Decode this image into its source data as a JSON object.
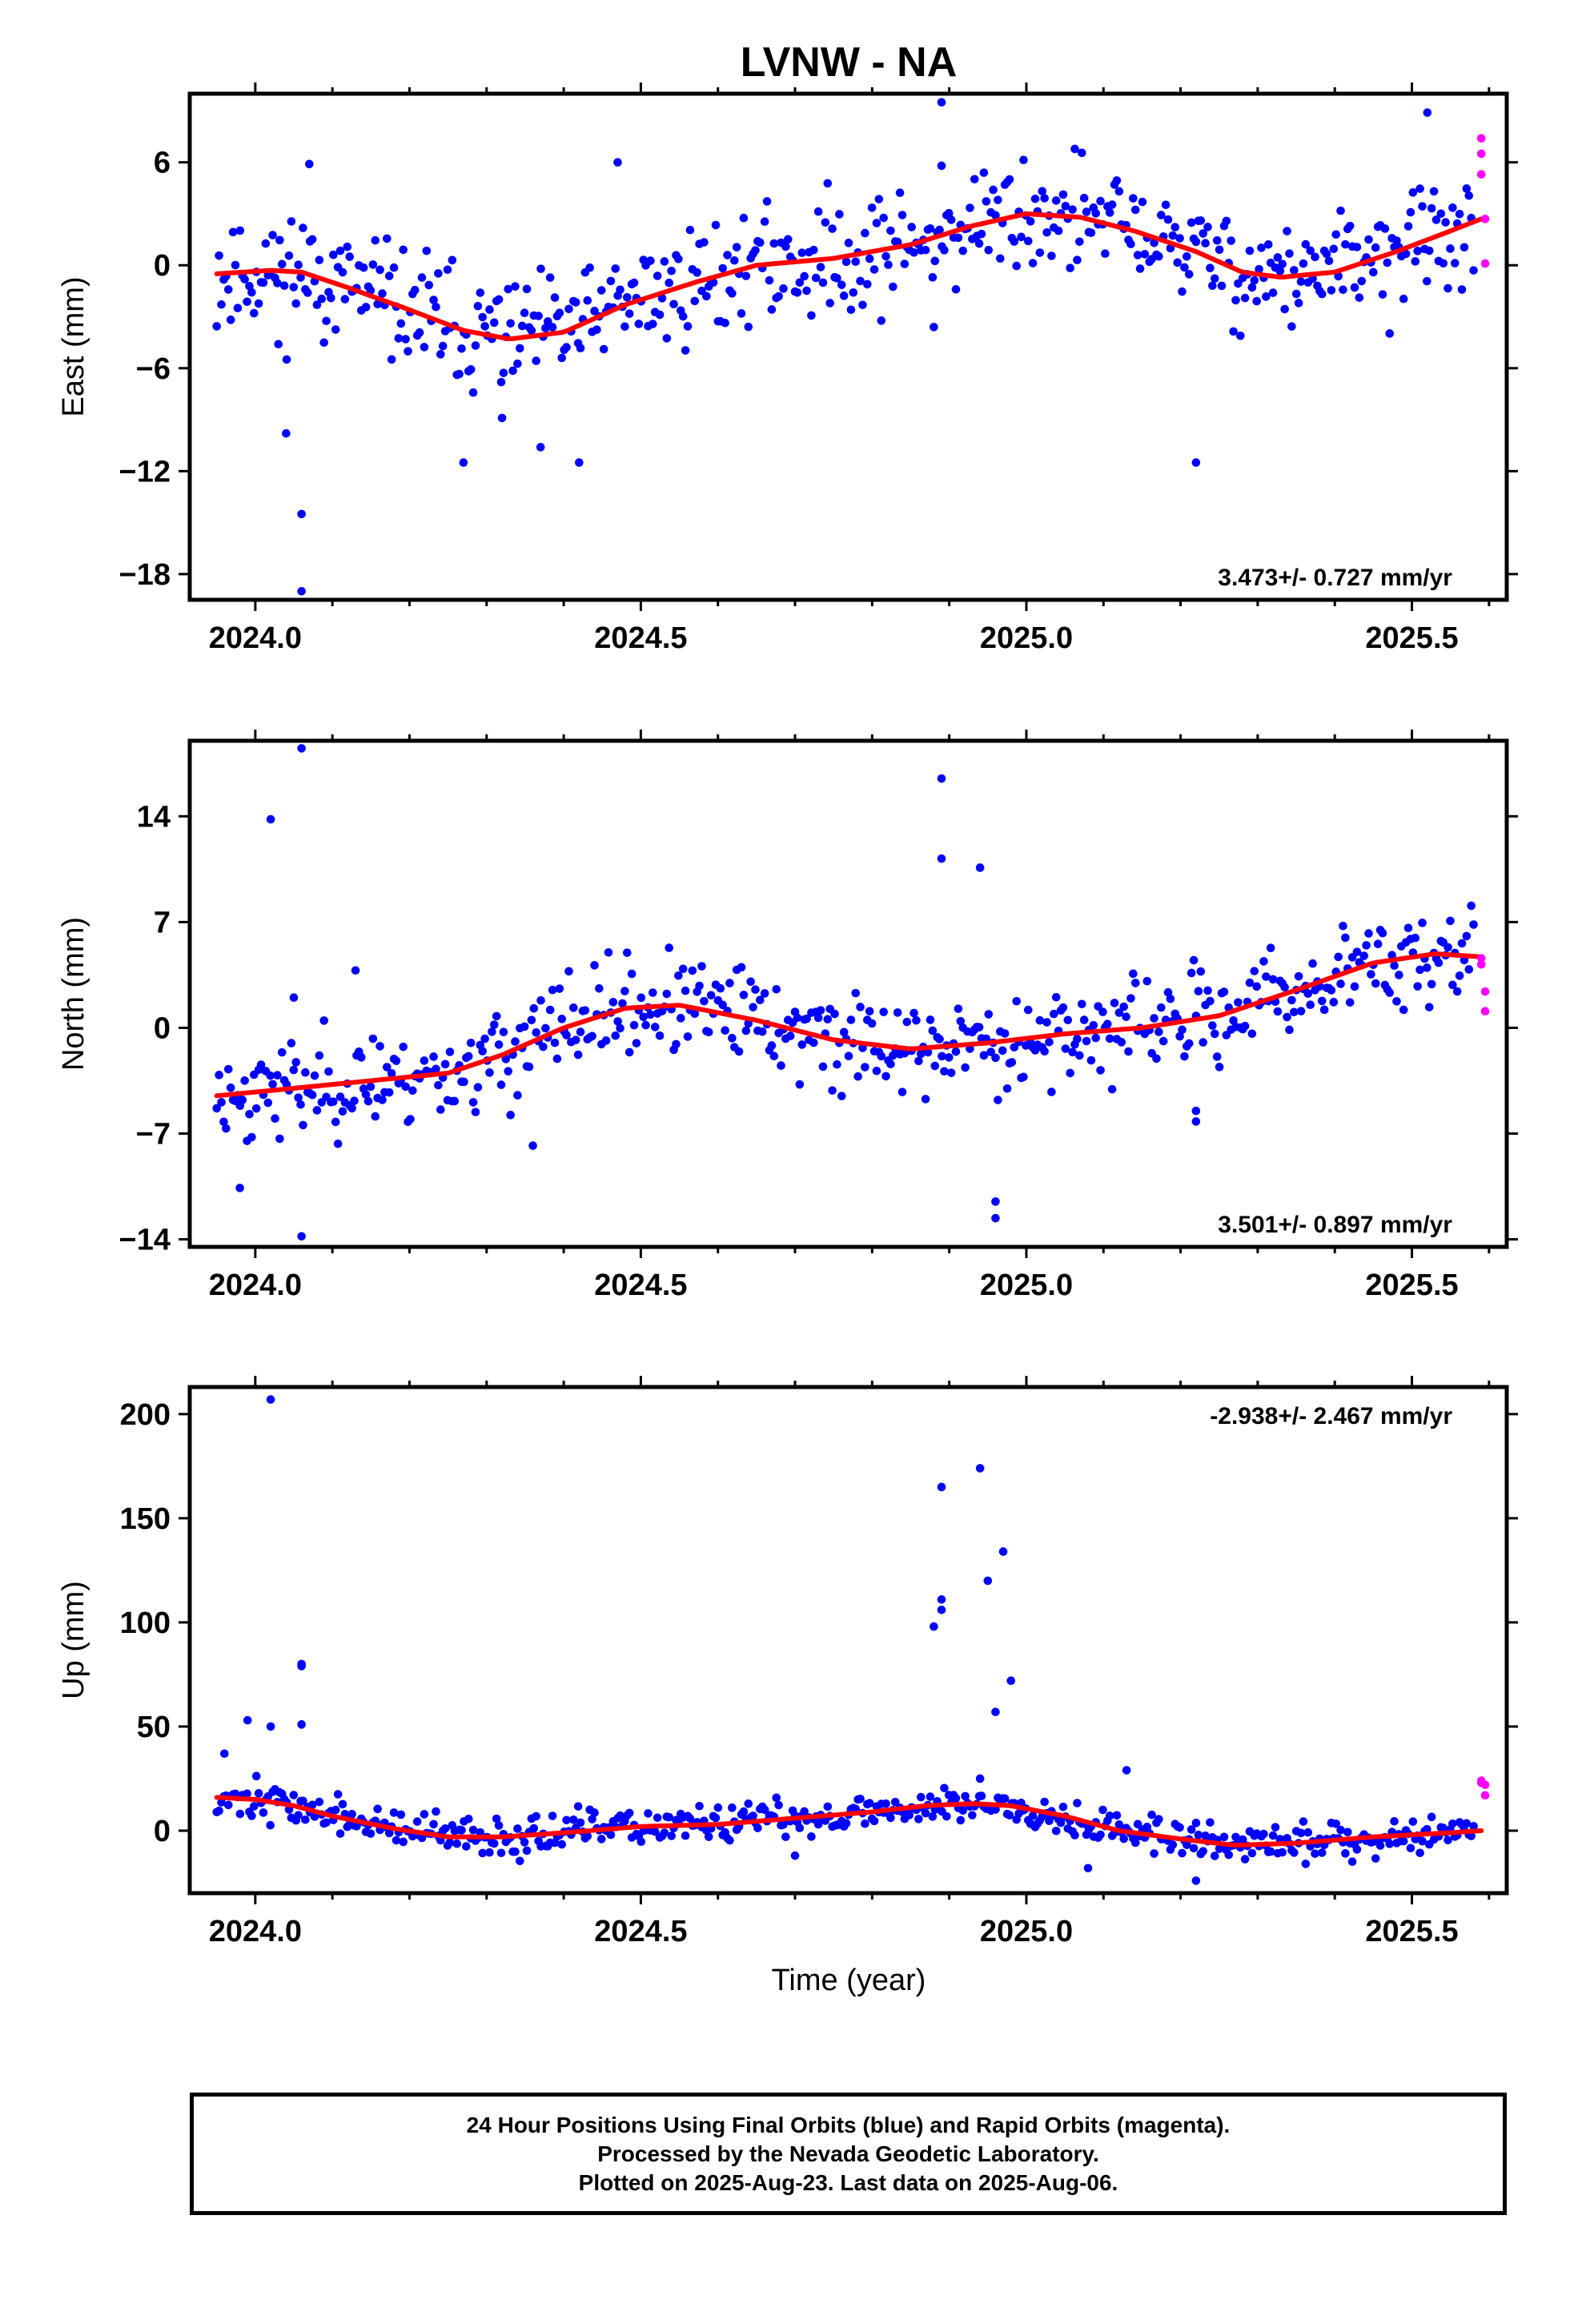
{
  "title": "LVNW - NA",
  "xlabel": "Time (year)",
  "colors": {
    "final": "#0000ff",
    "rapid": "#ff00ff",
    "model": "#ff0000",
    "frame": "#000000"
  },
  "footer": {
    "line1": "24 Hour Positions Using Final Orbits (blue) and Rapid Orbits (magenta).",
    "line2": "Processed by the Nevada Geodetic Laboratory.",
    "line3": "Plotted on 2025-Aug-23. Last data on 2025-Aug-06."
  },
  "chart_data": [
    {
      "type": "scatter",
      "ylabel": "East (mm)",
      "rate_label": "3.473+/- 0.727 mm/yr",
      "rate_position": "bottom-right",
      "xlim": [
        2023.915,
        2025.623
      ],
      "ylim": [
        -19.5,
        10
      ],
      "xticks": [
        2024.0,
        2024.5,
        2025.0,
        2025.5
      ],
      "xtick_labels": [
        "2024.0",
        "2024.5",
        "2025.0",
        "2025.5"
      ],
      "yticks": [
        6,
        0,
        -6,
        -12,
        -18
      ],
      "ytick_labels": [
        "6",
        "0",
        "−6",
        "−12",
        "−18"
      ],
      "model": {
        "x": [
          2023.95,
          2024.02,
          2024.06,
          2024.12,
          2024.2,
          2024.27,
          2024.33,
          2024.4,
          2024.48,
          2024.57,
          2024.65,
          2024.75,
          2024.85,
          2024.93,
          2025.0,
          2025.07,
          2025.14,
          2025.22,
          2025.28,
          2025.33,
          2025.4,
          2025.48,
          2025.55,
          2025.59
        ],
        "y": [
          -0.5,
          -0.3,
          -0.4,
          -1.3,
          -2.6,
          -3.8,
          -4.3,
          -3.9,
          -2.3,
          -1.0,
          0.0,
          0.4,
          1.2,
          2.3,
          3.0,
          2.8,
          2.0,
          0.8,
          -0.4,
          -0.7,
          -0.4,
          0.8,
          2.0,
          2.7
        ]
      },
      "final_outliers": {
        "x": [
          2024.04,
          2024.06,
          2024.06,
          2024.03,
          2024.27,
          2024.32,
          2024.37,
          2024.42,
          2024.47,
          2024.89,
          2024.89,
          2024.88,
          2025.22,
          2025.52,
          2024.07
        ],
        "y": [
          -9.8,
          -14.5,
          -19.0,
          -4.6,
          -11.5,
          -8.9,
          -10.6,
          -11.5,
          6.0,
          9.5,
          5.8,
          -3.6,
          -11.5,
          8.9,
          5.9
        ]
      },
      "rapid": {
        "x": [
          2025.59,
          2025.59,
          2025.59,
          2025.595,
          2025.595
        ],
        "y": [
          7.4,
          6.5,
          5.3,
          2.7,
          0.1
        ]
      },
      "final_series": {
        "x_start": 2023.95,
        "x_end": 2025.58,
        "n": 540,
        "scatter": 1.7,
        "seed": 11
      }
    },
    {
      "type": "scatter",
      "ylabel": "North (mm)",
      "rate_label": "3.501+/- 0.897 mm/yr",
      "rate_position": "bottom-right",
      "xlim": [
        2023.915,
        2025.623
      ],
      "ylim": [
        -14.5,
        19
      ],
      "xticks": [
        2024.0,
        2024.5,
        2025.0,
        2025.5
      ],
      "xtick_labels": [
        "2024.0",
        "2024.5",
        "2025.0",
        "2025.5"
      ],
      "yticks": [
        14,
        7,
        0,
        -7,
        -14
      ],
      "ytick_labels": [
        "14",
        "7",
        "0",
        "−7",
        "−14"
      ],
      "model": {
        "x": [
          2023.95,
          2024.05,
          2024.15,
          2024.25,
          2024.32,
          2024.4,
          2024.48,
          2024.55,
          2024.65,
          2024.75,
          2024.85,
          2024.95,
          2025.05,
          2025.15,
          2025.25,
          2025.35,
          2025.45,
          2025.53,
          2025.59
        ],
        "y": [
          -4.5,
          -4.0,
          -3.5,
          -3.0,
          -1.8,
          0.0,
          1.3,
          1.5,
          0.5,
          -0.8,
          -1.4,
          -1.0,
          -0.4,
          0.0,
          0.8,
          2.5,
          4.3,
          4.9,
          4.7
        ]
      },
      "final_outliers": {
        "x": [
          2024.06,
          2024.02,
          2024.06,
          2024.36,
          2023.98,
          2024.89,
          2024.89,
          2024.94,
          2024.96,
          2024.96,
          2025.22,
          2025.22,
          2024.13,
          2024.05
        ],
        "y": [
          18.5,
          13.8,
          -13.8,
          -7.8,
          -10.6,
          16.5,
          11.2,
          10.6,
          -11.5,
          -12.6,
          -5.5,
          -6.2,
          3.8,
          2.0
        ]
      },
      "rapid": {
        "x": [
          2025.59,
          2025.59,
          2025.595,
          2025.595
        ],
        "y": [
          4.6,
          4.2,
          2.4,
          1.1
        ]
      },
      "final_series": {
        "x_start": 2023.95,
        "x_end": 2025.58,
        "n": 540,
        "scatter": 1.6,
        "seed": 23
      }
    },
    {
      "type": "scatter",
      "ylabel": "Up (mm)",
      "rate_label": "-2.938+/- 2.467 mm/yr",
      "rate_position": "top-right",
      "xlim": [
        2023.915,
        2025.623
      ],
      "ylim": [
        -30,
        213
      ],
      "xticks": [
        2024.0,
        2024.5,
        2025.0,
        2025.5
      ],
      "xtick_labels": [
        "2024.0",
        "2024.5",
        "2025.0",
        "2025.5"
      ],
      "yticks": [
        200,
        150,
        100,
        50,
        0
      ],
      "ytick_labels": [
        "200",
        "150",
        "100",
        "50",
        "0"
      ],
      "model": {
        "x": [
          2023.95,
          2024.0,
          2024.05,
          2024.1,
          2024.18,
          2024.25,
          2024.32,
          2024.4,
          2024.5,
          2024.6,
          2024.7,
          2024.8,
          2024.87,
          2024.93,
          2024.98,
          2025.05,
          2025.12,
          2025.2,
          2025.27,
          2025.35,
          2025.45,
          2025.55,
          2025.59
        ],
        "y": [
          16,
          15,
          12,
          7,
          1,
          -3,
          -3,
          -1,
          2,
          3,
          6,
          9,
          12,
          13,
          12,
          7,
          0,
          -4,
          -7,
          -6,
          -3,
          -1,
          0
        ]
      },
      "final_outliers": {
        "x": [
          2024.02,
          2024.06,
          2024.06,
          2023.99,
          2023.96,
          2024.06,
          2024.02,
          2024.89,
          2024.89,
          2024.89,
          2024.88,
          2024.94,
          2024.95,
          2024.97,
          2024.96,
          2024.98,
          2024.94,
          2025.13,
          2025.22,
          2025.08,
          2024.7
        ],
        "y": [
          207,
          80,
          79,
          53,
          37,
          51,
          50,
          165,
          111,
          106,
          98,
          174,
          120,
          134,
          57,
          72,
          25,
          29,
          -24,
          -18,
          -12
        ]
      },
      "rapid": {
        "x": [
          2025.59,
          2025.59,
          2025.595,
          2025.595
        ],
        "y": [
          24,
          23,
          22,
          17
        ]
      },
      "final_series": {
        "x_start": 2023.95,
        "x_end": 2025.58,
        "n": 540,
        "scatter": 4.5,
        "seed": 37
      }
    }
  ]
}
